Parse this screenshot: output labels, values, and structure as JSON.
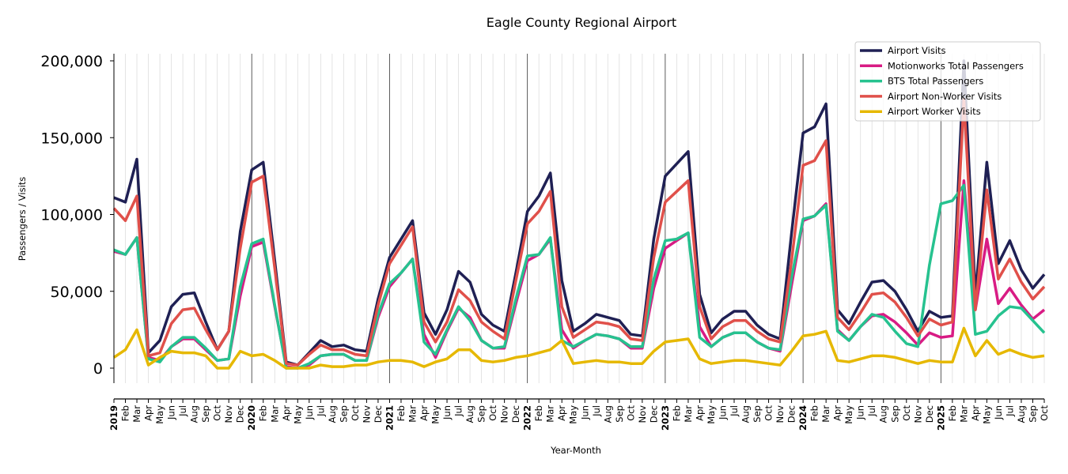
{
  "chart_data": {
    "type": "line",
    "title": "Eagle County Regional Airport",
    "xlabel": "Year-Month",
    "ylabel": "Passengers / Visits",
    "ylim": [
      -10000,
      205000
    ],
    "yticks": [
      0,
      50000,
      100000,
      150000,
      200000
    ],
    "ytick_labels": [
      "0",
      "50,000",
      "100,000",
      "150,000",
      "200,000"
    ],
    "grid": "vertical monthly",
    "legend_position": "top-right",
    "x": [
      "2019",
      "Feb",
      "Mar",
      "Apr",
      "May",
      "Jun",
      "Jul",
      "Aug",
      "Sep",
      "Oct",
      "Nov",
      "Dec",
      "2020",
      "Feb",
      "Mar",
      "Apr",
      "May",
      "Jun",
      "Jul",
      "Aug",
      "Sep",
      "Oct",
      "Nov",
      "Dec",
      "2021",
      "Feb",
      "Mar",
      "Apr",
      "May",
      "Jun",
      "Jul",
      "Aug",
      "Sep",
      "Oct",
      "Nov",
      "Dec",
      "2022",
      "Feb",
      "Mar",
      "Apr",
      "May",
      "Jun",
      "Jul",
      "Aug",
      "Sep",
      "Oct",
      "Nov",
      "Dec",
      "2023",
      "Feb",
      "Mar",
      "Apr",
      "May",
      "Jun",
      "Jul",
      "Aug",
      "Sep",
      "Oct",
      "Nov",
      "Dec",
      "2024",
      "Feb",
      "Mar",
      "Apr",
      "May",
      "Jun",
      "Jul",
      "Aug",
      "Sep",
      "Oct",
      "Nov",
      "Dec",
      "2025",
      "Feb",
      "Mar",
      "Apr",
      "May",
      "Jun",
      "Jul",
      "Aug",
      "Sep",
      "Oct"
    ],
    "series": [
      {
        "name": "Airport Visits",
        "color": "#1f2054",
        "values": [
          111000,
          108000,
          136000,
          10000,
          18000,
          40000,
          48000,
          49000,
          30000,
          12000,
          24000,
          89000,
          129000,
          134000,
          70000,
          4000,
          2000,
          10000,
          18000,
          14000,
          15000,
          12000,
          11000,
          45000,
          72000,
          84000,
          96000,
          36000,
          22000,
          38000,
          63000,
          56000,
          35000,
          28000,
          24000,
          62000,
          102000,
          112000,
          127000,
          57000,
          24000,
          29000,
          35000,
          33000,
          31000,
          22000,
          21000,
          84000,
          125000,
          133000,
          141000,
          48000,
          23000,
          32000,
          37000,
          37000,
          28000,
          22000,
          19000,
          88000,
          153000,
          157000,
          172000,
          38000,
          29000,
          43000,
          56000,
          57000,
          50000,
          38000,
          24000,
          37000,
          33000,
          34000,
          200000,
          47000,
          134000,
          68000,
          83000,
          64000,
          52000,
          61000
        ]
      },
      {
        "name": "Motionworks Total Passengers",
        "color": "#d81b84",
        "values": [
          76000,
          74000,
          85000,
          7000,
          5000,
          14000,
          19000,
          19000,
          12000,
          5000,
          6000,
          47000,
          79000,
          82000,
          40000,
          1000,
          0,
          2000,
          8000,
          9000,
          9000,
          5000,
          5000,
          33000,
          53000,
          62000,
          71000,
          22000,
          7000,
          24000,
          39000,
          33000,
          18000,
          13000,
          13000,
          42000,
          70000,
          74000,
          84000,
          25000,
          13000,
          18000,
          22000,
          21000,
          19000,
          13000,
          13000,
          52000,
          78000,
          83000,
          88000,
          27000,
          14000,
          20000,
          23000,
          23000,
          17000,
          13000,
          11000,
          54000,
          96000,
          99000,
          107000,
          25000,
          18000,
          27000,
          34000,
          35000,
          30000,
          23000,
          15000,
          23000,
          20000,
          21000,
          122000,
          38000,
          84000,
          42000,
          52000,
          41000,
          32000,
          38000
        ]
      },
      {
        "name": "BTS Total Passengers",
        "color": "#26c28f",
        "values": [
          77000,
          74000,
          85000,
          6000,
          4000,
          14000,
          20000,
          20000,
          13000,
          5000,
          6000,
          53000,
          81000,
          84000,
          41000,
          0,
          0,
          3000,
          8000,
          9000,
          9000,
          5000,
          5000,
          35000,
          55000,
          62000,
          71000,
          17000,
          9000,
          25000,
          40000,
          31000,
          18000,
          13000,
          14000,
          45000,
          73000,
          74000,
          85000,
          18000,
          14000,
          18000,
          22000,
          21000,
          19000,
          14000,
          14000,
          58000,
          83000,
          84000,
          88000,
          20000,
          14000,
          20000,
          23000,
          23000,
          17000,
          13000,
          12000,
          59000,
          97000,
          99000,
          106000,
          24000,
          18000,
          27000,
          35000,
          33000,
          24000,
          16000,
          14000,
          67000,
          107000,
          109000,
          119000,
          22000,
          24000,
          34000,
          40000,
          39000,
          31000,
          23000
        ]
      },
      {
        "name": "Airport Non-Worker Visits",
        "color": "#e0504a",
        "values": [
          104000,
          96000,
          112000,
          8000,
          10000,
          29000,
          38000,
          39000,
          25000,
          12000,
          24000,
          78000,
          121000,
          125000,
          65000,
          3000,
          2000,
          9000,
          15000,
          12000,
          12000,
          9000,
          8000,
          41000,
          68000,
          80000,
          92000,
          30000,
          17000,
          30000,
          51000,
          44000,
          30000,
          24000,
          19000,
          57000,
          94000,
          102000,
          115000,
          40000,
          20000,
          25000,
          30000,
          29000,
          27000,
          19000,
          18000,
          72000,
          108000,
          115000,
          122000,
          40000,
          19000,
          27000,
          31000,
          31000,
          24000,
          19000,
          17000,
          70000,
          132000,
          135000,
          148000,
          33000,
          25000,
          36000,
          48000,
          49000,
          43000,
          33000,
          21000,
          32000,
          28000,
          30000,
          175000,
          38000,
          116000,
          58000,
          71000,
          56000,
          45000,
          53000
        ]
      },
      {
        "name": "Airport Worker Visits",
        "color": "#e6b800",
        "values": [
          7000,
          12000,
          25000,
          2000,
          7000,
          11000,
          10000,
          10000,
          8000,
          0,
          0,
          11000,
          8000,
          9000,
          5000,
          0,
          0,
          0,
          2000,
          1000,
          1000,
          2000,
          2000,
          4000,
          5000,
          5000,
          4000,
          1000,
          4000,
          6000,
          12000,
          12000,
          5000,
          4000,
          5000,
          7000,
          8000,
          10000,
          12000,
          18000,
          3000,
          4000,
          5000,
          4000,
          4000,
          3000,
          3000,
          11000,
          17000,
          18000,
          19000,
          6000,
          3000,
          4000,
          5000,
          5000,
          4000,
          3000,
          2000,
          11000,
          21000,
          22000,
          24000,
          5000,
          4000,
          6000,
          8000,
          8000,
          7000,
          5000,
          3000,
          5000,
          4000,
          4000,
          26000,
          8000,
          18000,
          9000,
          12000,
          9000,
          7000,
          8000
        ]
      }
    ]
  }
}
